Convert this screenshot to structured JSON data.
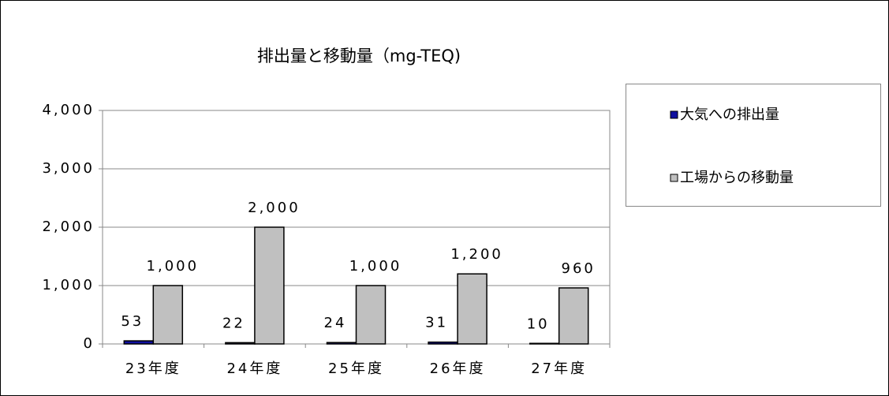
{
  "chart_data": {
    "type": "bar",
    "title": "排出量と移動量（mg-TEQ)",
    "categories": [
      "23年度",
      "24年度",
      "25年度",
      "26年度",
      "27年度"
    ],
    "series": [
      {
        "name": "大気への排出量",
        "color": "#1010a0",
        "values": [
          53,
          22,
          24,
          31,
          10
        ]
      },
      {
        "name": "工場からの移動量",
        "color": "#c0c0c0",
        "values": [
          1000,
          2000,
          1000,
          1200,
          960
        ],
        "value_labels": [
          "1,000",
          "2,000",
          "1,000",
          "1,200",
          "960"
        ]
      }
    ],
    "ylim": [
      0,
      4000
    ],
    "yticks": [
      0,
      {
        "value": 1000,
        "label": "1,000"
      },
      {
        "value": 2000,
        "label": "2,000"
      },
      {
        "value": 3000,
        "label": "3,000"
      },
      {
        "value": 4000,
        "label": "4,000"
      }
    ],
    "grid": true,
    "legend": "right"
  }
}
